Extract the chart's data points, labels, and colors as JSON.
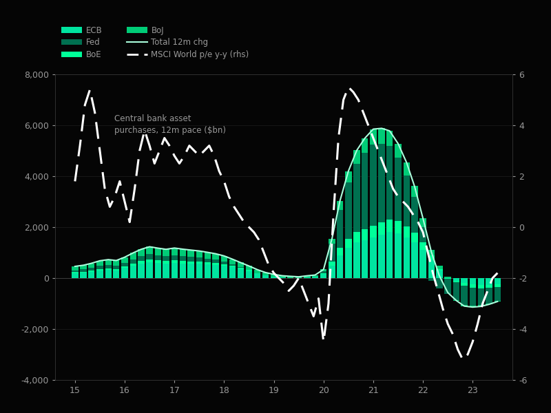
{
  "background_color": "#050505",
  "annotation": "Central bank asset\npurchases, 12m pace ($bn)",
  "ylim_left": [
    -4000,
    8000
  ],
  "ylim_right": [
    -6,
    6
  ],
  "xlim": [
    2014.6,
    2023.8
  ],
  "yticks_left": [
    -4000,
    -2000,
    0,
    2000,
    4000,
    6000,
    8000
  ],
  "yticks_right": [
    -6,
    -4,
    -2,
    0,
    2,
    4,
    6
  ],
  "xticks": [
    15,
    16,
    17,
    18,
    19,
    20,
    21,
    22,
    23
  ],
  "colors": {
    "ECB": "#00E5A0",
    "BoE": "#00FF99",
    "Fed": "#007050",
    "BoJ": "#00CC77",
    "total_line": "#AAFFDD",
    "msci_line": "#FFFFFF",
    "text": "#999999",
    "grid": "#1a1a1a"
  },
  "time_points": [
    2015.0,
    2015.17,
    2015.33,
    2015.5,
    2015.67,
    2015.83,
    2016.0,
    2016.17,
    2016.33,
    2016.5,
    2016.67,
    2016.83,
    2017.0,
    2017.17,
    2017.33,
    2017.5,
    2017.67,
    2017.83,
    2018.0,
    2018.17,
    2018.33,
    2018.5,
    2018.67,
    2018.83,
    2019.0,
    2019.17,
    2019.33,
    2019.5,
    2019.67,
    2019.83,
    2020.0,
    2020.17,
    2020.33,
    2020.5,
    2020.67,
    2020.83,
    2021.0,
    2021.17,
    2021.33,
    2021.5,
    2021.67,
    2021.83,
    2022.0,
    2022.17,
    2022.33,
    2022.5,
    2022.67,
    2022.83,
    2023.0,
    2023.17,
    2023.33,
    2023.5
  ],
  "ecb": [
    200,
    220,
    250,
    300,
    320,
    310,
    400,
    500,
    580,
    620,
    600,
    580,
    600,
    580,
    570,
    560,
    540,
    520,
    480,
    420,
    350,
    280,
    180,
    100,
    50,
    20,
    10,
    0,
    30,
    50,
    150,
    500,
    900,
    1200,
    1400,
    1500,
    1600,
    1700,
    1800,
    1750,
    1600,
    1400,
    1100,
    700,
    300,
    0,
    -100,
    -200,
    -250,
    -270,
    -260,
    -230
  ],
  "boe": [
    30,
    35,
    40,
    50,
    55,
    50,
    60,
    80,
    90,
    100,
    95,
    90,
    100,
    95,
    90,
    85,
    80,
    75,
    70,
    60,
    50,
    35,
    20,
    10,
    5,
    2,
    0,
    0,
    5,
    10,
    30,
    150,
    280,
    350,
    400,
    430,
    450,
    480,
    500,
    480,
    440,
    380,
    300,
    180,
    60,
    -20,
    -60,
    -100,
    -130,
    -140,
    -130,
    -110
  ],
  "fed": [
    80,
    90,
    110,
    130,
    140,
    130,
    140,
    160,
    190,
    220,
    200,
    190,
    200,
    190,
    180,
    170,
    150,
    130,
    100,
    60,
    30,
    10,
    0,
    0,
    0,
    0,
    0,
    0,
    0,
    0,
    80,
    700,
    1500,
    2200,
    2700,
    3000,
    3200,
    3100,
    2900,
    2500,
    2000,
    1400,
    600,
    -100,
    -400,
    -600,
    -700,
    -750,
    -700,
    -650,
    -600,
    -550
  ],
  "boj": [
    150,
    160,
    180,
    200,
    210,
    200,
    220,
    250,
    270,
    290,
    280,
    270,
    280,
    270,
    260,
    250,
    240,
    230,
    220,
    200,
    180,
    150,
    130,
    110,
    90,
    70,
    60,
    50,
    55,
    60,
    80,
    200,
    350,
    450,
    520,
    560,
    600,
    600,
    580,
    550,
    500,
    430,
    350,
    240,
    130,
    50,
    -20,
    -50,
    -60,
    -50,
    -40,
    -30
  ],
  "msci_times": [
    2015.0,
    2015.1,
    2015.2,
    2015.3,
    2015.4,
    2015.5,
    2015.6,
    2015.7,
    2015.8,
    2015.9,
    2016.0,
    2016.1,
    2016.2,
    2016.3,
    2016.4,
    2016.5,
    2016.6,
    2016.7,
    2016.8,
    2016.9,
    2017.0,
    2017.1,
    2017.2,
    2017.3,
    2017.4,
    2017.5,
    2017.6,
    2017.7,
    2017.8,
    2017.9,
    2018.0,
    2018.1,
    2018.2,
    2018.3,
    2018.4,
    2018.5,
    2018.6,
    2018.7,
    2018.8,
    2018.9,
    2019.0,
    2019.1,
    2019.2,
    2019.3,
    2019.4,
    2019.5,
    2019.6,
    2019.7,
    2019.8,
    2019.9,
    2020.0,
    2020.1,
    2020.2,
    2020.3,
    2020.4,
    2020.5,
    2020.6,
    2020.7,
    2020.8,
    2020.9,
    2021.0,
    2021.1,
    2021.2,
    2021.3,
    2021.4,
    2021.5,
    2021.6,
    2021.7,
    2021.8,
    2021.9,
    2022.0,
    2022.1,
    2022.2,
    2022.3,
    2022.4,
    2022.5,
    2022.6,
    2022.7,
    2022.8,
    2022.9,
    2023.0,
    2023.1,
    2023.2,
    2023.3,
    2023.4,
    2023.5
  ],
  "msci": [
    1.8,
    3.2,
    4.8,
    5.4,
    4.5,
    3.0,
    1.5,
    0.8,
    1.2,
    1.8,
    1.0,
    0.2,
    1.5,
    3.0,
    3.8,
    3.2,
    2.5,
    3.0,
    3.5,
    3.2,
    2.8,
    2.5,
    2.8,
    3.2,
    3.0,
    2.8,
    3.0,
    3.2,
    2.8,
    2.2,
    1.8,
    1.2,
    0.8,
    0.5,
    0.2,
    0.0,
    -0.2,
    -0.5,
    -1.0,
    -1.5,
    -1.8,
    -2.0,
    -2.2,
    -2.5,
    -2.3,
    -2.0,
    -2.5,
    -3.0,
    -3.5,
    -2.8,
    -4.5,
    -3.0,
    0.5,
    3.5,
    5.0,
    5.5,
    5.3,
    5.0,
    4.5,
    4.0,
    3.5,
    3.0,
    2.5,
    2.0,
    1.5,
    1.2,
    1.0,
    0.8,
    0.5,
    0.2,
    -0.2,
    -1.0,
    -1.8,
    -2.5,
    -3.2,
    -3.8,
    -4.2,
    -4.8,
    -5.2,
    -5.0,
    -4.5,
    -3.8,
    -3.0,
    -2.5,
    -2.0,
    -1.8
  ]
}
